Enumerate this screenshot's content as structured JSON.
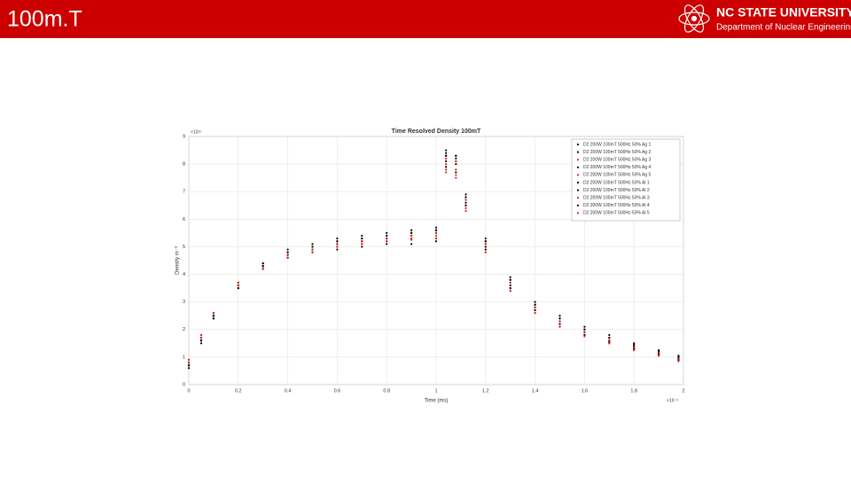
{
  "header": {
    "title": "100m.T",
    "logo_name": "NC STATE UNIVERSITY",
    "logo_department": "Department of Nuclear Engineering"
  },
  "chart_data": {
    "type": "scatter",
    "title": "Time Resolved Density 100mT",
    "x_label": "Time (ms)",
    "y_label": "Density m⁻³",
    "x_multiplier": "×10⁻³",
    "y_multiplier": "×10¹⁵",
    "xlim": [
      0,
      2
    ],
    "ylim": [
      0,
      9
    ],
    "xticks": [
      0,
      0.2,
      0.4,
      0.6,
      0.8,
      1,
      1.2,
      1.4,
      1.6,
      1.8,
      2
    ],
    "yticks": [
      0,
      1,
      2,
      3,
      4,
      5,
      6,
      7,
      8,
      9
    ],
    "grid": true,
    "legend": "upper right",
    "x": [
      0,
      0.05,
      0.1,
      0.2,
      0.3,
      0.4,
      0.5,
      0.6,
      0.7,
      0.8,
      0.9,
      1.0,
      1.04,
      1.08,
      1.12,
      1.2,
      1.3,
      1.4,
      1.5,
      1.6,
      1.7,
      1.8,
      1.9,
      1.98
    ],
    "series": [
      {
        "name": "D2 200W 100mT 500Hz 50% Ag 1",
        "color": "#000000",
        "values": [
          0.7,
          1.6,
          2.4,
          3.6,
          4.4,
          4.8,
          5.0,
          5.2,
          5.3,
          5.4,
          5.5,
          5.6,
          8.4,
          8.3,
          6.8,
          5.2,
          3.8,
          2.9,
          2.4,
          2.0,
          1.7,
          1.4,
          1.2,
          1.0
        ]
      },
      {
        "name": "D2 200W 100mT 500Hz 50% Ag 2",
        "color": "#000000",
        "values": [
          0.8,
          1.7,
          2.5,
          3.7,
          4.3,
          4.7,
          4.9,
          5.1,
          5.2,
          5.3,
          5.4,
          5.5,
          8.3,
          8.1,
          6.7,
          5.1,
          3.7,
          2.8,
          2.3,
          1.9,
          1.6,
          1.35,
          1.15,
          0.95
        ]
      },
      {
        "name": "D2 200W 100mT 500Hz 50% Ag 3",
        "color": "#e0201c",
        "values": [
          0.9,
          1.8,
          2.6,
          3.6,
          4.2,
          4.6,
          4.8,
          5.0,
          5.1,
          5.2,
          5.3,
          5.4,
          8.0,
          7.8,
          6.5,
          4.9,
          3.5,
          2.7,
          2.2,
          1.8,
          1.5,
          1.3,
          1.1,
          0.9
        ]
      },
      {
        "name": "D2 200W 100mT 500Hz 50% Ag 4",
        "color": "#000000",
        "values": [
          0.8,
          1.7,
          2.5,
          3.5,
          4.3,
          4.7,
          4.9,
          5.1,
          5.2,
          5.3,
          5.4,
          5.5,
          8.1,
          8.0,
          6.6,
          5.0,
          3.6,
          2.8,
          2.3,
          1.9,
          1.6,
          1.35,
          1.15,
          0.95
        ]
      },
      {
        "name": "D2 200W 100mT 500Hz 50% Ag 5",
        "color": "#e0201c",
        "values": [
          0.9,
          1.8,
          2.6,
          3.7,
          4.2,
          4.6,
          4.8,
          5.0,
          5.1,
          5.2,
          5.3,
          5.3,
          7.8,
          7.6,
          6.4,
          4.8,
          3.4,
          2.6,
          2.1,
          1.8,
          1.5,
          1.25,
          1.05,
          0.85
        ]
      },
      {
        "name": "D2 200W 100mT 500Hz 50% Al 1",
        "color": "#000000",
        "values": [
          0.6,
          1.5,
          2.4,
          3.5,
          4.4,
          4.9,
          5.1,
          5.3,
          5.4,
          5.5,
          5.6,
          5.7,
          8.5,
          8.3,
          6.9,
          5.3,
          3.9,
          3.0,
          2.5,
          2.1,
          1.8,
          1.5,
          1.25,
          1.05
        ]
      },
      {
        "name": "D2 200W 100mT 500Hz 50% Al 2",
        "color": "#000000",
        "values": [
          0.7,
          1.6,
          2.5,
          3.6,
          4.2,
          4.6,
          4.8,
          4.9,
          5.0,
          5.1,
          5.1,
          5.2,
          7.9,
          7.7,
          6.5,
          4.9,
          3.5,
          2.7,
          2.2,
          1.8,
          1.55,
          1.3,
          1.1,
          0.9
        ]
      },
      {
        "name": "D2 200W 100mT 500Hz 50% Al 3",
        "color": "#e0201c",
        "values": [
          0.8,
          1.7,
          2.6,
          3.6,
          4.3,
          4.7,
          4.9,
          5.1,
          5.2,
          5.3,
          5.4,
          5.5,
          8.2,
          8.1,
          6.7,
          5.1,
          3.7,
          2.8,
          2.3,
          1.9,
          1.6,
          1.35,
          1.15,
          0.95
        ]
      },
      {
        "name": "D2 200W 100mT 500Hz 50% Al 4",
        "color": "#000000",
        "values": [
          0.7,
          1.6,
          2.5,
          3.6,
          4.3,
          4.8,
          5.0,
          5.2,
          5.3,
          5.4,
          5.5,
          5.6,
          8.3,
          8.2,
          6.8,
          5.2,
          3.8,
          2.9,
          2.4,
          2.0,
          1.7,
          1.45,
          1.2,
          1.0
        ]
      },
      {
        "name": "D2 200W 100mT 500Hz 50% Al 5",
        "color": "#e0201c",
        "values": [
          0.9,
          1.8,
          2.6,
          3.6,
          4.2,
          4.6,
          4.8,
          5.0,
          5.1,
          5.2,
          5.25,
          5.3,
          7.7,
          7.5,
          6.3,
          4.8,
          3.4,
          2.6,
          2.1,
          1.75,
          1.5,
          1.25,
          1.05,
          0.85
        ]
      }
    ]
  }
}
